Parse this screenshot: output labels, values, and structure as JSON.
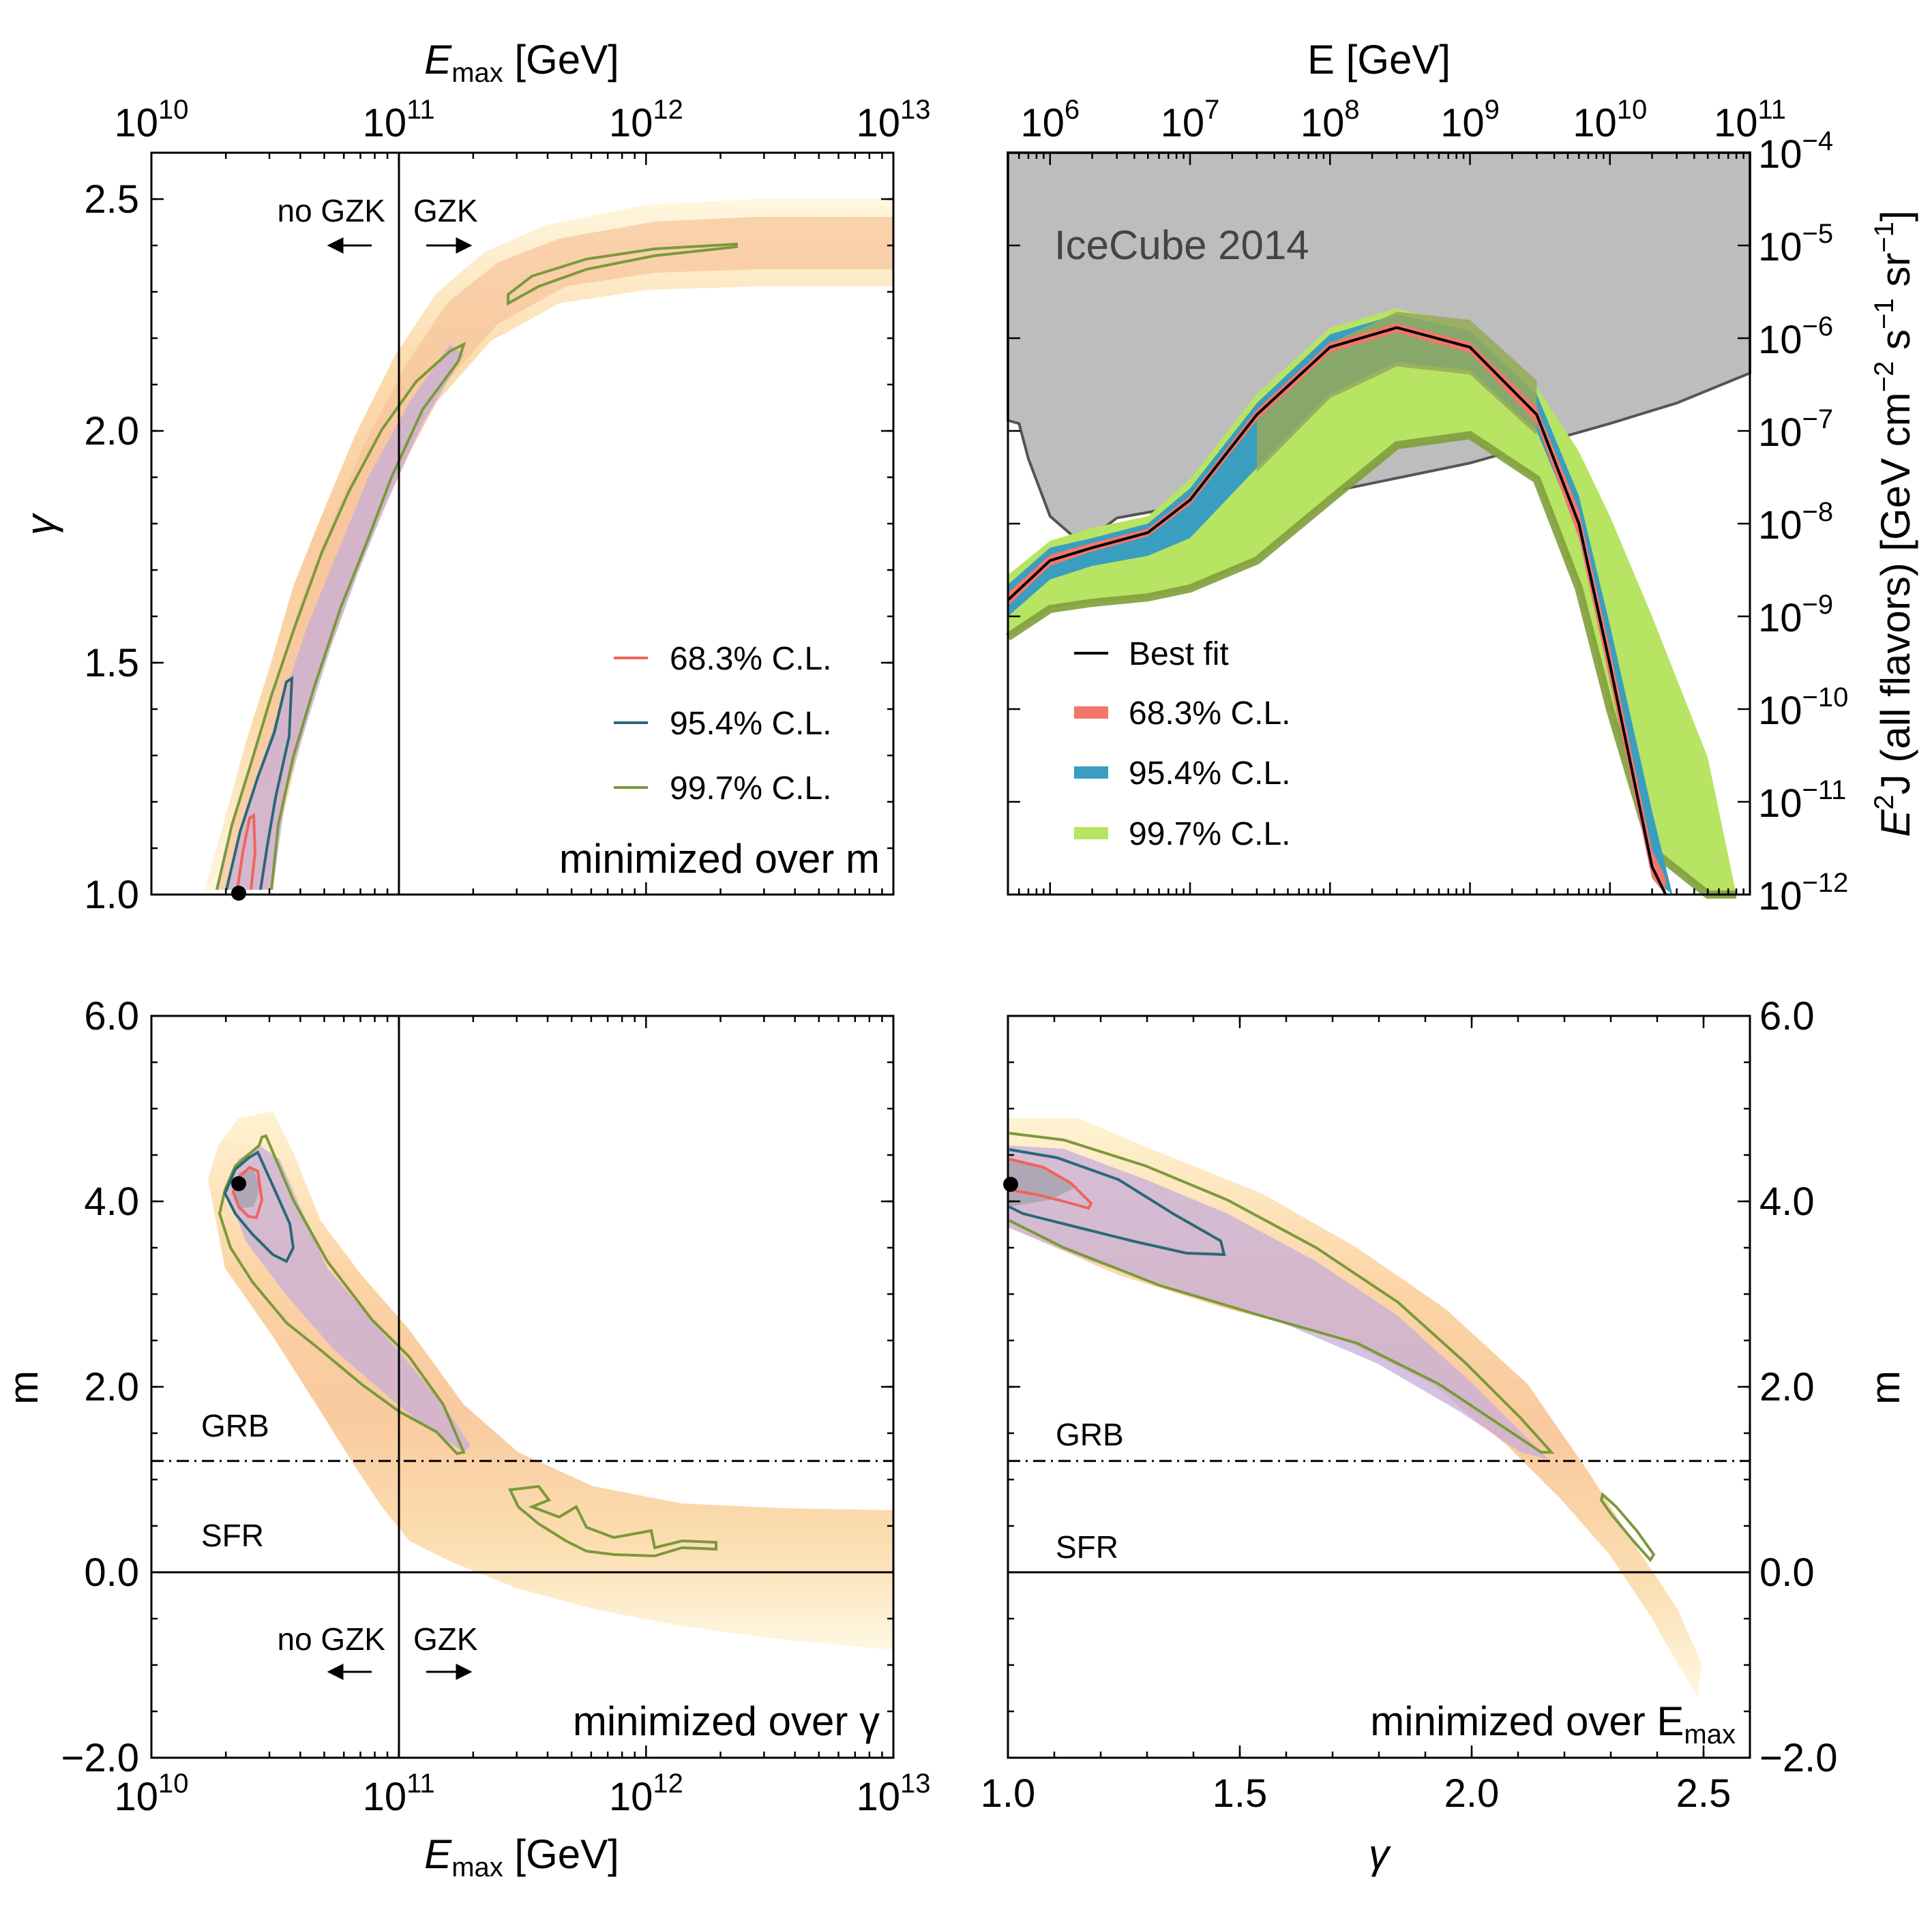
{
  "chart_data": [
    {
      "panel": "top-left",
      "type": "heatmap",
      "xlabel": "E_max [GeV]",
      "xlabel_main": "E",
      "xlabel_sub": "max",
      "xlabel_unit": " [GeV]",
      "ylabel": "γ",
      "xscale": "log",
      "xlim": [
        10000000000.0,
        10000000000000.0
      ],
      "ylim": [
        1.0,
        2.6
      ],
      "x_ticks": [
        {
          "base": "10",
          "exp": "10"
        },
        {
          "base": "10",
          "exp": "11"
        },
        {
          "base": "10",
          "exp": "12"
        },
        {
          "base": "10",
          "exp": "13"
        }
      ],
      "y_ticks": [
        "1.0",
        "1.5",
        "2.0",
        "2.5"
      ],
      "y_tick_values": [
        1.0,
        1.5,
        2.0,
        2.5
      ],
      "annotation": "minimized over m",
      "gzk_line_x": 100000000000.0,
      "gzk_left_label": "no GZK",
      "gzk_right_label": "GZK",
      "best_fit": {
        "E_max": 23000000000.0,
        "gamma": 1.0
      },
      "legend": [
        {
          "label": "68.3% C.L.",
          "color": "#f0645a"
        },
        {
          "label": "95.4% C.L.",
          "color": "#2a6878"
        },
        {
          "label": "99.7% C.L.",
          "color": "#7a9a3a"
        }
      ]
    },
    {
      "panel": "top-right",
      "type": "area",
      "xlabel": "E [GeV]",
      "ylabel": "E²J  (all flavors)  [GeV cm⁻² s⁻¹ sr⁻¹]",
      "ylabel_parts": [
        "E",
        "2",
        "J  (all flavors)  [GeV cm",
        "−2",
        " s",
        "−1",
        " sr",
        "−1",
        "]"
      ],
      "xscale": "log",
      "yscale": "log",
      "xlim": [
        500000.0,
        100000000000.0
      ],
      "ylim": [
        1e-12,
        0.0001
      ],
      "x_ticks": [
        {
          "base": "10",
          "exp": "6"
        },
        {
          "base": "10",
          "exp": "7"
        },
        {
          "base": "10",
          "exp": "8"
        },
        {
          "base": "10",
          "exp": "9"
        },
        {
          "base": "10",
          "exp": "10"
        },
        {
          "base": "10",
          "exp": "11"
        }
      ],
      "y_ticks": [
        {
          "base": "10",
          "exp": "−4"
        },
        {
          "base": "10",
          "exp": "−5"
        },
        {
          "base": "10",
          "exp": "−6"
        },
        {
          "base": "10",
          "exp": "−7"
        },
        {
          "base": "10",
          "exp": "−8"
        },
        {
          "base": "10",
          "exp": "−9"
        },
        {
          "base": "10",
          "exp": "−10"
        },
        {
          "base": "10",
          "exp": "−11"
        },
        {
          "base": "10",
          "exp": "−12"
        }
      ],
      "icecube_label": "IceCube 2014",
      "icecube_limit": {
        "E": [
          500000.0,
          600000.0,
          700000.0,
          1000000.0,
          1700000.0,
          3000000.0,
          10000000.0,
          100000000.0,
          1000000000.0,
          10000000000.0,
          30000000000.0,
          100000000000.0
        ],
        "flux": [
          1.3e-07,
          1.2e-07,
          5e-08,
          1.2e-08,
          6e-09,
          1.15e-08,
          1.6e-08,
          2.2e-08,
          4.5e-08,
          1.2e-07,
          2e-07,
          4.2e-07
        ]
      },
      "best_fit": {
        "E": [
          500000.0,
          1000000.0,
          2000000.0,
          5000000.0,
          10000000.0,
          30000000.0,
          100000000.0,
          300000000.0,
          1000000000.0,
          3000000000.0,
          6000000000.0,
          10000000000.0,
          20000000000.0,
          25000000000.0
        ],
        "flux": [
          1.5e-09,
          4e-09,
          5.5e-09,
          8e-09,
          1.8e-08,
          1.5e-07,
          8e-07,
          1.3e-06,
          8e-07,
          1.5e-07,
          1e-08,
          3e-10,
          2e-12,
          1e-12
        ]
      },
      "band_68": {
        "E": [
          500000.0,
          1000000.0,
          2000000.0,
          5000000.0,
          10000000.0,
          30000000.0,
          100000000.0,
          300000000.0,
          1000000000.0,
          3000000000.0,
          6000000000.0,
          10000000000.0,
          20000000000.0,
          25000000000.0
        ],
        "lo": [
          1.3e-09,
          3.5e-09,
          5e-09,
          7.3e-09,
          1.6e-08,
          1.3e-07,
          7e-07,
          1.15e-06,
          7e-07,
          1.2e-07,
          7e-09,
          2e-10,
          1.5e-12,
          1e-12
        ],
        "hi": [
          1.8e-09,
          4.6e-09,
          6.2e-09,
          8.8e-09,
          2e-08,
          1.7e-07,
          9e-07,
          1.45e-06,
          9e-07,
          1.8e-07,
          1.4e-08,
          4.5e-10,
          3e-12,
          1.5e-12
        ]
      },
      "band_95": {
        "E": [
          500000.0,
          1000000.0,
          2000000.0,
          5000000.0,
          10000000.0,
          30000000.0,
          100000000.0,
          300000000.0,
          1000000000.0,
          3000000000.0,
          6000000000.0,
          10000000000.0,
          20000000000.0,
          28000000000.0
        ],
        "lo": [
          1e-09,
          2.5e-09,
          3.5e-09,
          4.5e-09,
          7e-09,
          4e-08,
          2.5e-07,
          5.5e-07,
          4.5e-07,
          1e-07,
          8e-09,
          2e-10,
          1.5e-12,
          1e-12
        ],
        "hi": [
          2.2e-09,
          5.5e-09,
          7e-09,
          1e-08,
          2.4e-08,
          2e-07,
          1.1e-06,
          1.8e-06,
          1.2e-06,
          2.5e-07,
          2e-08,
          8e-10,
          8e-12,
          1e-12
        ]
      },
      "band_997": {
        "E": [
          500000.0,
          1000000.0,
          2000000.0,
          5000000.0,
          10000000.0,
          30000000.0,
          100000000.0,
          300000000.0,
          1000000000.0,
          3000000000.0,
          6000000000.0,
          10000000000.0,
          20000000000.0,
          50000000000.0,
          80000000000.0
        ],
        "lo": [
          6e-10,
          1.2e-09,
          1.4e-09,
          1.6e-09,
          2e-09,
          4e-09,
          1.8e-08,
          7e-08,
          9e-08,
          3e-08,
          2e-09,
          1e-10,
          3e-12,
          1e-12,
          1e-12
        ],
        "hi": [
          2.8e-09,
          6.5e-09,
          9e-09,
          1.2e-08,
          3e-08,
          2.5e-07,
          1.3e-06,
          2.1e-06,
          1.3e-06,
          3e-07,
          6e-08,
          1.2e-08,
          1e-09,
          3e-11,
          1e-12
        ]
      },
      "legend": [
        {
          "label": "Best fit",
          "color": "#000000"
        },
        {
          "label": "68.3% C.L.",
          "color": "#f4766b"
        },
        {
          "label": "95.4% C.L.",
          "color": "#3a9ec0"
        },
        {
          "label": "99.7% C.L.",
          "color": "#b7e463"
        }
      ]
    },
    {
      "panel": "bottom-left",
      "type": "heatmap",
      "xlabel": "E_max [GeV]",
      "xlabel_main": "E",
      "xlabel_sub": "max",
      "xlabel_unit": " [GeV]",
      "ylabel": "m",
      "xscale": "log",
      "xlim": [
        10000000000.0,
        10000000000000.0
      ],
      "ylim": [
        -2.0,
        6.0
      ],
      "x_ticks": [
        {
          "base": "10",
          "exp": "10"
        },
        {
          "base": "10",
          "exp": "11"
        },
        {
          "base": "10",
          "exp": "12"
        },
        {
          "base": "10",
          "exp": "13"
        }
      ],
      "y_ticks": [
        "−2.0",
        "0.0",
        "2.0",
        "4.0",
        "6.0"
      ],
      "y_tick_values": [
        -2.0,
        0.0,
        2.0,
        4.0,
        6.0
      ],
      "annotation": "minimized over γ",
      "grb_label": "GRB",
      "sfr_label": "SFR",
      "grb_line_m": 1.2,
      "gzk_line_x": 100000000000.0,
      "gzk_left_label": "no GZK",
      "gzk_right_label": "GZK",
      "best_fit": {
        "E_max": 23000000000.0,
        "m": 4.2
      }
    },
    {
      "panel": "bottom-right",
      "type": "heatmap",
      "xlabel": "γ",
      "ylabel": "m",
      "xlim": [
        1.0,
        2.6
      ],
      "ylim": [
        -2.0,
        6.0
      ],
      "x_ticks": [
        "1.0",
        "1.5",
        "2.0",
        "2.5"
      ],
      "x_tick_values": [
        1.0,
        1.5,
        2.0,
        2.5
      ],
      "y_ticks": [
        "−2.0",
        "0.0",
        "2.0",
        "4.0",
        "6.0"
      ],
      "y_tick_values": [
        -2.0,
        0.0,
        2.0,
        4.0,
        6.0
      ],
      "annotation": "minimized over E_max",
      "annotation_main": "minimized over E",
      "annotation_sub": "max",
      "grb_label": "GRB",
      "sfr_label": "SFR",
      "grb_line_m": 1.2,
      "best_fit": {
        "gamma": 1.0,
        "m": 4.2
      }
    }
  ]
}
